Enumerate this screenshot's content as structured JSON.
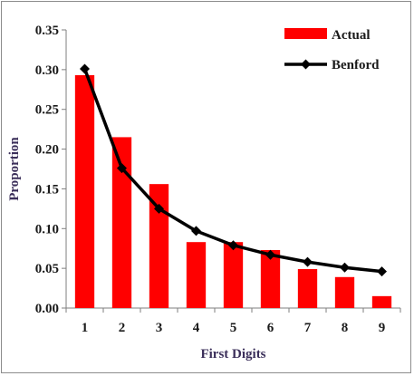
{
  "chart_data": {
    "type": "bar",
    "xlabel": "First Digits",
    "ylabel": "Proportion",
    "categories": [
      "1",
      "2",
      "3",
      "4",
      "5",
      "6",
      "7",
      "8",
      "9"
    ],
    "ylim": [
      0,
      0.35
    ],
    "yticks": [
      "0.00",
      "0.05",
      "0.10",
      "0.15",
      "0.20",
      "0.25",
      "0.30",
      "0.35"
    ],
    "series": [
      {
        "name": "Actual",
        "kind": "bar",
        "color": "#ff0000",
        "values": [
          0.293,
          0.215,
          0.156,
          0.083,
          0.083,
          0.073,
          0.049,
          0.039,
          0.015
        ]
      },
      {
        "name": "Benford",
        "kind": "line",
        "color": "#000000",
        "marker": "diamond",
        "values": [
          0.301,
          0.176,
          0.125,
          0.097,
          0.079,
          0.067,
          0.058,
          0.051,
          0.046
        ]
      }
    ],
    "legend_position": "top-right",
    "grid": false
  }
}
